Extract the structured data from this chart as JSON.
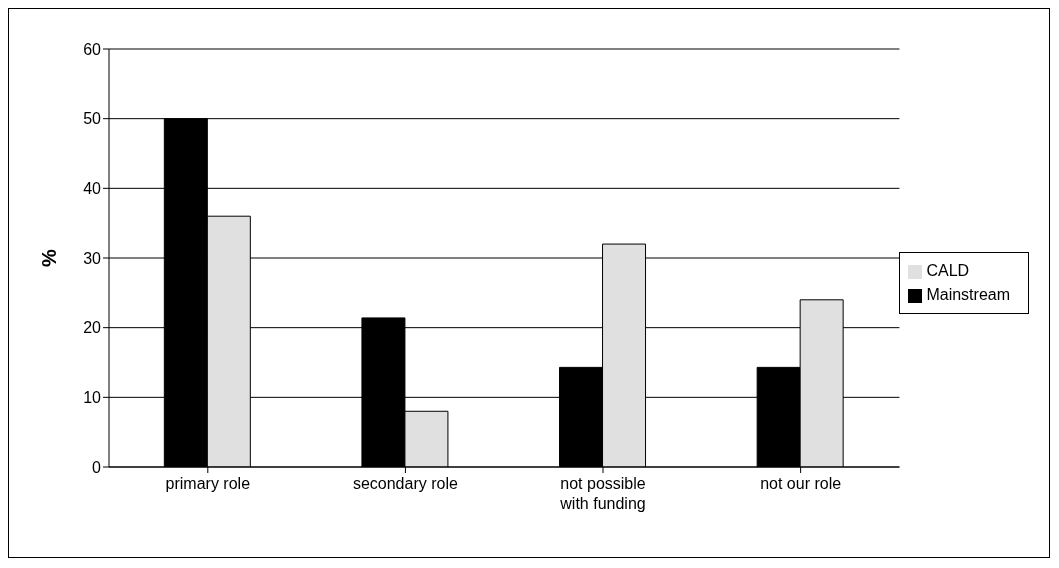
{
  "chart_data": {
    "type": "bar",
    "ylabel": "%",
    "categories": [
      "primary role",
      "secondary role",
      "not possible with funding",
      "not our role"
    ],
    "series": [
      {
        "name": "Mainstream",
        "color": "#000000",
        "values": [
          50,
          21.4,
          14.3,
          14.3
        ]
      },
      {
        "name": "CALD",
        "color": "#e0e0e0",
        "values": [
          36,
          8,
          32,
          24
        ]
      }
    ],
    "ylim": [
      0,
      60
    ],
    "yticks": [
      0,
      10,
      20,
      30,
      40,
      50,
      60
    ],
    "grid": "y",
    "legend": "right"
  }
}
